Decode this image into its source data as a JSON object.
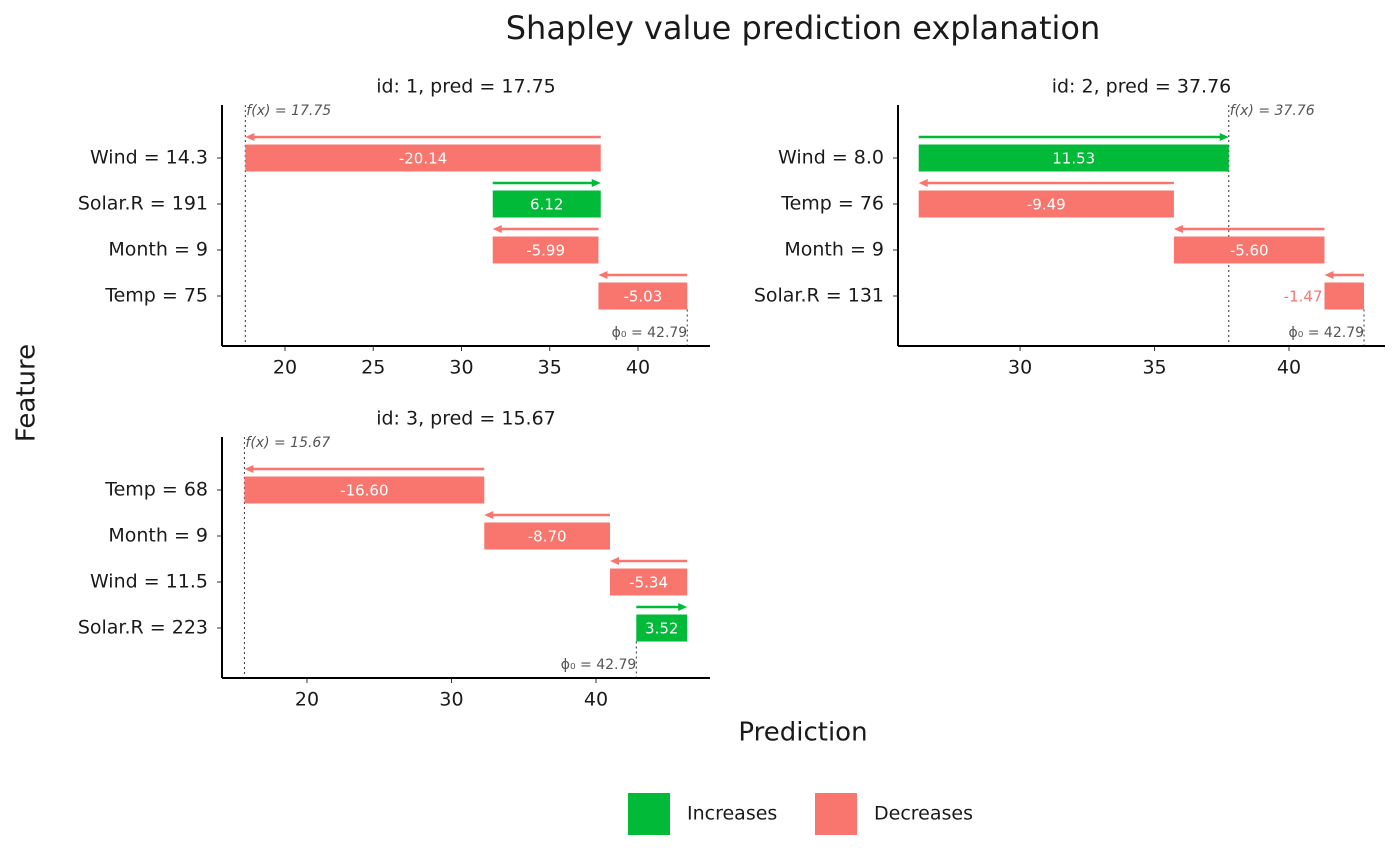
{
  "title": "Shapley value prediction explanation",
  "xlabel": "Prediction",
  "ylabel": "Feature",
  "legend": [
    {
      "name": "Increases",
      "color": "#00ba38"
    },
    {
      "name": "Decreases",
      "color": "#f8766d"
    }
  ],
  "chart_data": [
    {
      "type": "waterfall",
      "title": "id: 1, pred = 17.75",
      "categories": [
        "Wind = 14.3",
        "Solar.R = 191",
        "Month = 9",
        "Temp = 75"
      ],
      "values": [
        -20.14,
        6.12,
        -5.99,
        -5.03
      ],
      "value_labels": [
        "-20.14",
        "6.12",
        "-5.99",
        "-5.03"
      ],
      "base": 42.79,
      "base_label": "ϕ₀ = 42.79",
      "prediction": 17.75,
      "prediction_label": "f(x) = 17.75",
      "xlim": [
        16.43,
        44.08
      ],
      "xticks": [
        20,
        25,
        30,
        35,
        40
      ]
    },
    {
      "type": "waterfall",
      "title": "id: 2, pred = 37.76",
      "categories": [
        "Wind = 8.0",
        "Temp = 76",
        "Month = 9",
        "Solar.R = 131"
      ],
      "values": [
        11.53,
        -9.49,
        -5.6,
        -1.47
      ],
      "value_labels": [
        "11.53",
        "-9.49",
        "-5.60",
        "-1.47"
      ],
      "base": 42.79,
      "base_label": "ϕ₀ = 42.79",
      "prediction": 37.76,
      "prediction_label": "f(x) = 37.76",
      "xlim": [
        25.46,
        43.57
      ],
      "xticks": [
        30,
        35,
        40
      ]
    },
    {
      "type": "waterfall",
      "title": "id: 3, pred = 15.67",
      "categories": [
        "Temp = 68",
        "Month = 9",
        "Wind = 11.5",
        "Solar.R = 223"
      ],
      "values": [
        -16.6,
        -8.7,
        -5.34,
        3.52
      ],
      "value_labels": [
        "-16.60",
        "-8.70",
        "-5.34",
        "3.52"
      ],
      "base": 42.79,
      "base_label": "ϕ₀ = 42.79",
      "prediction": 15.67,
      "prediction_label": "f(x) = 15.67",
      "xlim": [
        14.12,
        47.89
      ],
      "xticks": [
        20,
        30,
        40
      ]
    }
  ]
}
